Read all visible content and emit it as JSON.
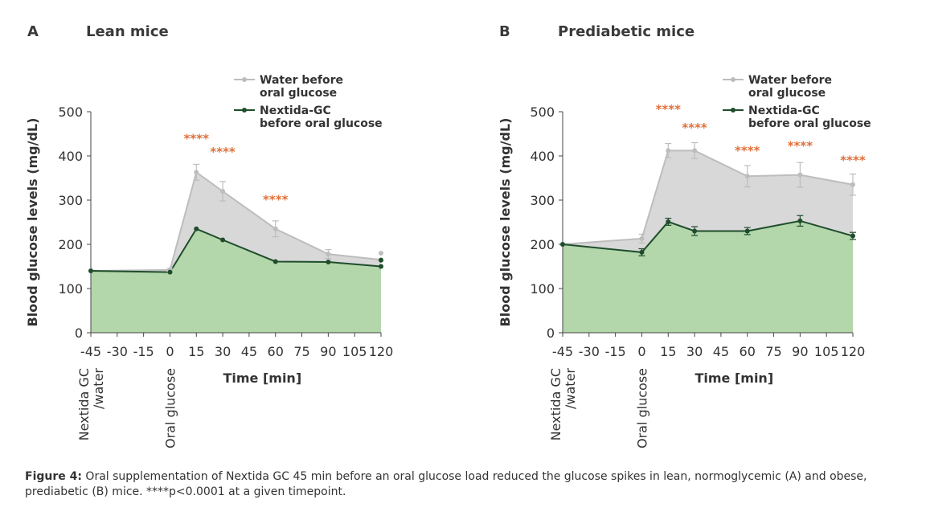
{
  "caption": {
    "label": "Figure 4:",
    "text": " Oral supplementation of Nextida GC 45 min before an oral glucose load reduced the glucose spikes in lean, normoglycemic (A) and obese, prediabetic (B) mice. ****p<0.0001 at a given timepoint."
  },
  "colors": {
    "water": "#bdbdbd",
    "water_fill": "#d8d8d8",
    "nextida": "#1f4d2b",
    "nextida_fill": "#b3d6ab",
    "stars": "#e0703a"
  },
  "chart_data": [
    {
      "type": "area",
      "panel_label": "A",
      "title": "Lean mice",
      "ylabel": "Blood glucose levels (mg/dL)",
      "xlabel": "Time [min]",
      "ylim": [
        0,
        500
      ],
      "yticks": [
        0,
        100,
        200,
        300,
        400,
        500
      ],
      "xlim": [
        -45,
        120
      ],
      "xticks": [
        "-45",
        "-30",
        "-15",
        "0",
        "15",
        "30",
        "45",
        "60",
        "75",
        "90",
        "105",
        "120"
      ],
      "annotations": [
        "Nextida GC\n/water",
        "Oral glucose"
      ],
      "legend_position": "top-right",
      "series": [
        {
          "name": "Water before\noral glucose",
          "x": [
            -45,
            0,
            15,
            30,
            60,
            90,
            120
          ],
          "y": [
            140,
            142,
            363,
            320,
            235,
            178,
            165
          ],
          "err": [
            0,
            4,
            18,
            22,
            18,
            10,
            0
          ]
        },
        {
          "name": "Nextida-GC\nbefore oral glucose",
          "x": [
            -45,
            0,
            15,
            30,
            60,
            90,
            120
          ],
          "y": [
            140,
            137,
            235,
            210,
            161,
            160,
            150
          ],
          "err": [
            0,
            0,
            0,
            0,
            0,
            0,
            0
          ]
        }
      ],
      "extra_points": [
        {
          "series": "water",
          "x": 120,
          "y": 180
        },
        {
          "series": "nextida",
          "x": 120,
          "y": 164
        }
      ],
      "significance": [
        {
          "x": 15,
          "y": 430,
          "label": "****"
        },
        {
          "x": 30,
          "y": 400,
          "label": "****"
        },
        {
          "x": 60,
          "y": 292,
          "label": "****"
        }
      ]
    },
    {
      "type": "area",
      "panel_label": "B",
      "title": "Prediabetic mice",
      "ylabel": "Blood glucose levels (mg/dL)",
      "xlabel": "Time [min]",
      "ylim": [
        0,
        500
      ],
      "yticks": [
        0,
        100,
        200,
        300,
        400,
        500
      ],
      "xlim": [
        -45,
        120
      ],
      "xticks": [
        "-45",
        "-30",
        "-15",
        "0",
        "15",
        "30",
        "45",
        "60",
        "75",
        "90",
        "105",
        "120"
      ],
      "annotations": [
        "Nextida GC\n/water",
        "Oral glucose"
      ],
      "legend_position": "top-right",
      "series": [
        {
          "name": "Water before\noral glucose",
          "x": [
            -45,
            0,
            15,
            30,
            60,
            90,
            120
          ],
          "y": [
            200,
            213,
            412,
            412,
            354,
            357,
            335
          ],
          "err": [
            0,
            10,
            16,
            18,
            24,
            28,
            24
          ]
        },
        {
          "name": "Nextida-GC\nbefore oral glucose",
          "x": [
            -45,
            0,
            15,
            30,
            60,
            90,
            120
          ],
          "y": [
            200,
            182,
            251,
            230,
            230,
            253,
            219
          ],
          "err": [
            0,
            8,
            8,
            10,
            8,
            12,
            8
          ]
        }
      ],
      "extra_points": [],
      "significance": [
        {
          "x": 15,
          "y": 496,
          "label": "****"
        },
        {
          "x": 30,
          "y": 455,
          "label": "****"
        },
        {
          "x": 60,
          "y": 403,
          "label": "****"
        },
        {
          "x": 90,
          "y": 414,
          "label": "****"
        },
        {
          "x": 120,
          "y": 381,
          "label": "****"
        }
      ]
    }
  ]
}
